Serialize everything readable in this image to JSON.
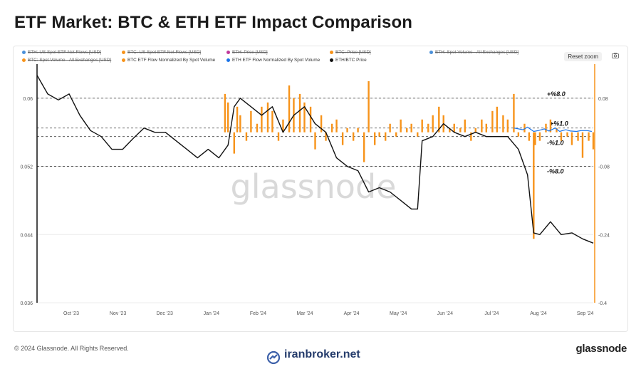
{
  "title": "ETF Market: BTC & ETH ETF Impact Comparison",
  "footer": {
    "copyright": "© 2024 Glassnode. All Rights Reserved.",
    "brand": "glassnode",
    "watermark_site": "iranbroker.net"
  },
  "controls": {
    "reset_zoom": "Reset zoom"
  },
  "watermark": "glassnode",
  "legend": [
    {
      "label": "ETH: US Spot ETF Net Flows [USD]",
      "color": "#4a90d9",
      "active": false
    },
    {
      "label": "BTC: US Spot ETF Net Flows [USD]",
      "color": "#f7931a",
      "active": false
    },
    {
      "label": "ETH: Price [USD]",
      "color": "#c0399a",
      "active": false
    },
    {
      "label": "BTC: Price [USD]",
      "color": "#f7931a",
      "active": false
    },
    {
      "label": "ETH: Spot Volume - All Exchanges [USD]",
      "color": "#4a90d9",
      "active": false
    },
    {
      "label": "BTC: Spot Volume - All Exchanges [USD]",
      "color": "#f7931a",
      "active": false
    },
    {
      "label": "BTC ETF Flow Normalized By Spot Volume",
      "color": "#f7931a",
      "active": true
    },
    {
      "label": "ETH ETF Flow Normalized By Spot Volume",
      "color": "#1a73e8",
      "active": true
    },
    {
      "label": "ETH/BTC Price",
      "color": "#111111",
      "active": true
    }
  ],
  "chart_data": {
    "type": "line",
    "x_tick_labels": [
      "Oct '23",
      "Nov '23",
      "Dec '23",
      "Jan '24",
      "Feb '24",
      "Mar '24",
      "Apr '24",
      "May '24",
      "Jun '24",
      "Jul '24",
      "Aug '24",
      "Sep '24"
    ],
    "x_range": [
      "2023-09-15",
      "2024-09-13"
    ],
    "y_left": {
      "ylim": [
        0.036,
        0.064
      ],
      "ticks": [
        "0.036",
        "0.044",
        "0.052",
        "0.06"
      ]
    },
    "y_right": {
      "ylim": [
        -0.4,
        0.16
      ],
      "ticks": [
        "0.08",
        "-0.08",
        "-0.24",
        "-0.4"
      ]
    },
    "thresholds": [
      {
        "label": "+%8.0",
        "value": 0.08
      },
      {
        "label": "+%1.0",
        "value": 0.01
      },
      {
        "label": "-%1.0",
        "value": -0.01
      },
      {
        "label": "-%8.0",
        "value": -0.08
      }
    ],
    "series": [
      {
        "name": "ETH/BTC Price",
        "axis": "left",
        "color": "#111111",
        "x": [
          "2023-09-15",
          "2023-09-22",
          "2023-09-29",
          "2023-10-06",
          "2023-10-13",
          "2023-10-20",
          "2023-10-27",
          "2023-11-03",
          "2023-11-10",
          "2023-11-17",
          "2023-11-24",
          "2023-12-01",
          "2023-12-08",
          "2023-12-15",
          "2023-12-22",
          "2023-12-29",
          "2024-01-05",
          "2024-01-12",
          "2024-01-18",
          "2024-01-22",
          "2024-01-26",
          "2024-02-02",
          "2024-02-09",
          "2024-02-16",
          "2024-02-23",
          "2024-03-01",
          "2024-03-08",
          "2024-03-15",
          "2024-03-22",
          "2024-03-29",
          "2024-04-05",
          "2024-04-12",
          "2024-04-19",
          "2024-04-26",
          "2024-05-03",
          "2024-05-10",
          "2024-05-17",
          "2024-05-21",
          "2024-05-24",
          "2024-05-31",
          "2024-06-07",
          "2024-06-14",
          "2024-06-21",
          "2024-06-28",
          "2024-07-05",
          "2024-07-12",
          "2024-07-19",
          "2024-07-26",
          "2024-08-01",
          "2024-08-05",
          "2024-08-09",
          "2024-08-16",
          "2024-08-23",
          "2024-08-30",
          "2024-09-06",
          "2024-09-13"
        ],
        "values": [
          0.0627,
          0.0605,
          0.0598,
          0.0605,
          0.058,
          0.0562,
          0.0555,
          0.054,
          0.054,
          0.0553,
          0.0565,
          0.056,
          0.056,
          0.055,
          0.054,
          0.053,
          0.054,
          0.053,
          0.0545,
          0.059,
          0.06,
          0.059,
          0.058,
          0.059,
          0.056,
          0.058,
          0.059,
          0.057,
          0.056,
          0.053,
          0.052,
          0.0515,
          0.049,
          0.0495,
          0.049,
          0.048,
          0.047,
          0.047,
          0.055,
          0.0555,
          0.057,
          0.056,
          0.0555,
          0.056,
          0.0555,
          0.0555,
          0.0555,
          0.054,
          0.051,
          0.0442,
          0.044,
          0.0455,
          0.044,
          0.0442,
          0.0435,
          0.043
        ]
      },
      {
        "name": "BTC ETF Flow Normalized By Spot Volume",
        "axis": "right",
        "color": "#f7931a",
        "kind": "bar",
        "x": [
          "2024-01-16",
          "2024-01-18",
          "2024-01-22",
          "2024-01-24",
          "2024-01-26",
          "2024-01-30",
          "2024-02-02",
          "2024-02-06",
          "2024-02-09",
          "2024-02-13",
          "2024-02-16",
          "2024-02-20",
          "2024-02-23",
          "2024-02-27",
          "2024-03-01",
          "2024-03-05",
          "2024-03-08",
          "2024-03-12",
          "2024-03-15",
          "2024-03-19",
          "2024-03-22",
          "2024-03-26",
          "2024-03-29",
          "2024-04-02",
          "2024-04-05",
          "2024-04-09",
          "2024-04-12",
          "2024-04-16",
          "2024-04-19",
          "2024-04-23",
          "2024-04-26",
          "2024-04-30",
          "2024-05-03",
          "2024-05-07",
          "2024-05-10",
          "2024-05-14",
          "2024-05-17",
          "2024-05-21",
          "2024-05-24",
          "2024-05-28",
          "2024-05-31",
          "2024-06-04",
          "2024-06-07",
          "2024-06-11",
          "2024-06-14",
          "2024-06-18",
          "2024-06-21",
          "2024-06-25",
          "2024-06-28",
          "2024-07-02",
          "2024-07-05",
          "2024-07-09",
          "2024-07-12",
          "2024-07-16",
          "2024-07-19",
          "2024-07-23",
          "2024-07-26",
          "2024-07-30",
          "2024-08-02",
          "2024-08-05",
          "2024-08-06",
          "2024-08-09",
          "2024-08-13",
          "2024-08-16",
          "2024-08-20",
          "2024-08-23",
          "2024-08-27",
          "2024-08-30",
          "2024-09-03",
          "2024-09-06",
          "2024-09-10",
          "2024-09-13"
        ],
        "values": [
          0.09,
          0.07,
          -0.05,
          0.06,
          0.04,
          -0.02,
          0.05,
          0.02,
          0.06,
          0.07,
          0.05,
          -0.02,
          0.03,
          0.11,
          0.08,
          0.09,
          0.07,
          0.06,
          -0.04,
          0.04,
          -0.02,
          0.02,
          0.03,
          -0.03,
          0.01,
          -0.02,
          0.01,
          -0.07,
          0.12,
          -0.03,
          -0.01,
          -0.02,
          0.02,
          -0.01,
          0.03,
          0.01,
          0.02,
          -0.01,
          0.03,
          0.02,
          0.04,
          0.06,
          0.04,
          0.01,
          0.02,
          0.01,
          0.03,
          -0.02,
          0.01,
          0.03,
          0.02,
          0.05,
          0.06,
          0.04,
          0.03,
          0.09,
          -0.01,
          0.02,
          -0.02,
          -0.25,
          -0.03,
          -0.02,
          0.02,
          0.03,
          0.01,
          -0.02,
          -0.01,
          -0.03,
          -0.02,
          -0.06,
          -0.02,
          -0.04
        ]
      },
      {
        "name": "ETH ETF Flow Normalized By Spot Volume",
        "axis": "right",
        "color": "#1a73e8",
        "x": [
          "2024-07-23",
          "2024-07-26",
          "2024-07-29",
          "2024-08-01",
          "2024-08-05",
          "2024-08-08",
          "2024-08-12",
          "2024-08-15",
          "2024-08-19",
          "2024-08-22",
          "2024-08-26",
          "2024-08-29",
          "2024-09-02",
          "2024-09-05",
          "2024-09-09",
          "2024-09-12"
        ],
        "values": [
          0.01,
          0.008,
          0.006,
          0.012,
          0.002,
          0.004,
          0.008,
          0.003,
          0.01,
          0.002,
          0.006,
          0.003,
          0.002,
          0.004,
          0.004,
          0.002
        ]
      }
    ]
  }
}
